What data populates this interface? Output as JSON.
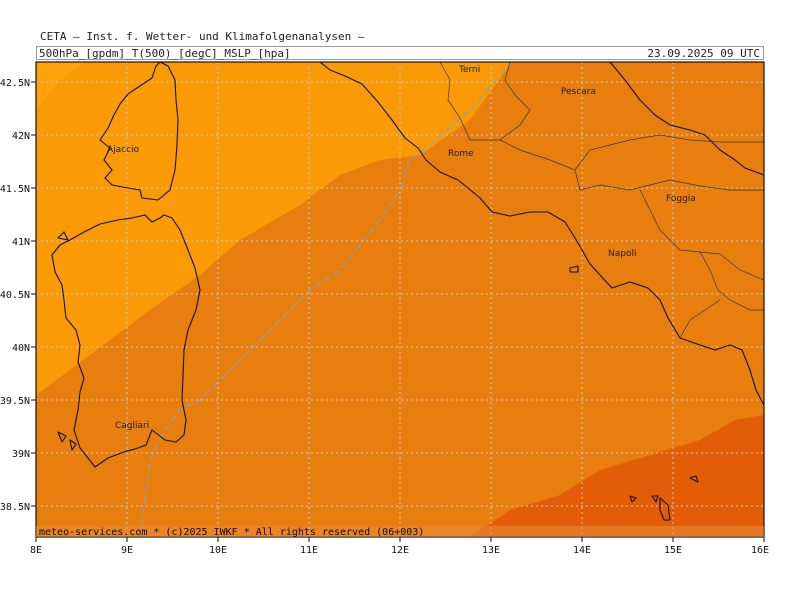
{
  "header": {
    "institute": "CETA — Inst. f. Wetter- und Klimafolgenanalysen —",
    "fields": "500hPa_[gpdm]_T(500)_[degC]_MSLP_[hpa]",
    "datetime": "23.09.2025 09 UTC"
  },
  "map": {
    "lon_labels": [
      "8E",
      "9E",
      "10E",
      "11E",
      "12E",
      "13E",
      "14E",
      "15E",
      "16E"
    ],
    "lat_labels": [
      "42.5N",
      "42N",
      "41.5N",
      "41N",
      "40.5N",
      "40N",
      "39.5N",
      "39N",
      "38.5N"
    ],
    "cities": [
      "Terni",
      "Pescara",
      "Ajaccio",
      "Rome",
      "Foggia",
      "Napoli",
      "Cagliari"
    ],
    "colors": {
      "temp_warmest": "#e35d08",
      "temp_warm": "#e87e0e",
      "temp_mild": "#fa9a06",
      "temp_cool": "#ffa20c",
      "coastline": "#111111",
      "gridline": "#c9c9c9",
      "isobar": "#8aa0c0"
    }
  },
  "footer": {
    "copyright": "meteo-services.com * (c)2025 IWKF * All rights reserved (06+003)"
  }
}
